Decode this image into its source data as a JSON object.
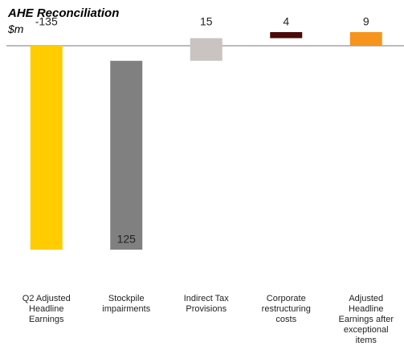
{
  "chart_data": {
    "type": "waterfall",
    "title": "AHE Reconciliation",
    "subtitle": "$m",
    "categories": [
      "Q2 Adjusted Headline Earnings",
      "Stockpile impairments",
      "Indirect Tax Provisions",
      "Corporate restructuring costs",
      "Adjusted Headline Earnings after exceptional items"
    ],
    "values": [
      -135,
      125,
      15,
      4,
      9
    ],
    "colors": [
      "#ffcc00",
      "#808080",
      "#c9c4c1",
      "#4a0a0a",
      "#f7941d"
    ]
  }
}
